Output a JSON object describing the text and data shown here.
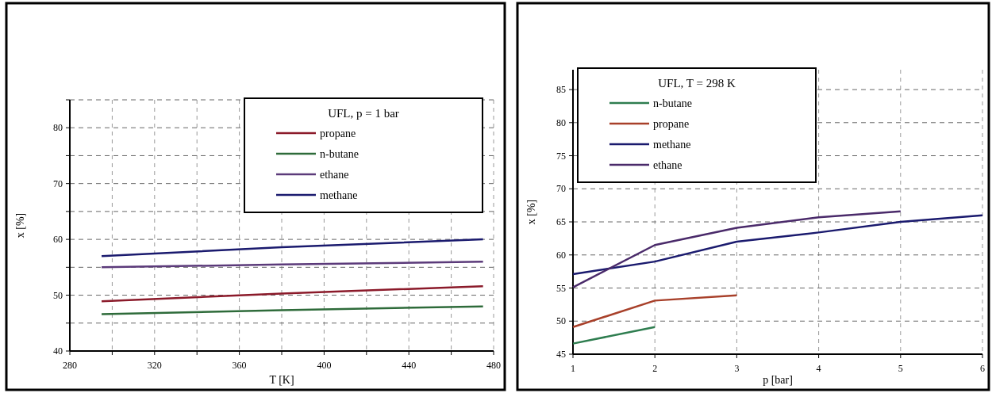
{
  "chart_data": [
    {
      "type": "line",
      "xlabel": "T [K]",
      "ylabel": "x [%]",
      "legend_title": "UFL, p = 1 bar",
      "legend": "top right",
      "grid": true,
      "line_style": "solid",
      "xlim": [
        280,
        480
      ],
      "xticks": [
        280,
        {
          "value": 300,
          "label": null
        },
        320,
        {
          "value": 340,
          "label": null
        },
        360,
        {
          "value": 380,
          "label": null
        },
        400,
        {
          "value": 420,
          "label": null
        },
        440,
        {
          "value": 460,
          "label": null
        },
        480
      ],
      "ylim": [
        40,
        85
      ],
      "yticks": [
        40,
        {
          "value": 45,
          "label": null
        },
        50,
        {
          "value": 55,
          "label": null
        },
        60,
        {
          "value": 65,
          "label": null
        },
        70,
        {
          "value": 75,
          "label": null
        },
        80,
        {
          "value": 85,
          "label": null
        }
      ],
      "series": [
        {
          "name": "propane",
          "color": "#8b1a2a",
          "x": [
            295,
            380,
            475
          ],
          "values": [
            48.9,
            50.3,
            51.6
          ]
        },
        {
          "name": "n-butane",
          "color": "#2e6b3a",
          "x": [
            295,
            380,
            475
          ],
          "values": [
            46.6,
            47.3,
            48
          ]
        },
        {
          "name": "ethane",
          "color": "#5b3a7a",
          "x": [
            295,
            380,
            475
          ],
          "values": [
            55,
            55.5,
            56
          ]
        },
        {
          "name": "methane",
          "color": "#1a1a6e",
          "x": [
            295,
            380,
            475
          ],
          "values": [
            57,
            58.6,
            60
          ]
        }
      ]
    },
    {
      "type": "line",
      "xlabel": "p [bar]",
      "ylabel": "x [%]",
      "legend_title": "UFL, T = 298 K",
      "legend": "top left",
      "grid": true,
      "line_style": "solid",
      "xlim": [
        1,
        6
      ],
      "xticks": [
        1,
        2,
        3,
        4,
        5,
        6
      ],
      "ylim": [
        45,
        88
      ],
      "yticks": [
        45,
        50,
        55,
        60,
        65,
        70,
        75,
        80,
        85
      ],
      "series": [
        {
          "name": "n-butane",
          "color": "#2e7d4f",
          "x": [
            1,
            2
          ],
          "values": [
            46.6,
            49.1
          ]
        },
        {
          "name": "propane",
          "color": "#a8402a",
          "x": [
            1,
            2,
            3
          ],
          "values": [
            49.1,
            53.1,
            53.9
          ]
        },
        {
          "name": "methane",
          "color": "#1a1a6e",
          "x": [
            1,
            2,
            3,
            4,
            5,
            6
          ],
          "values": [
            57.1,
            59,
            62,
            63.4,
            65,
            66
          ]
        },
        {
          "name": "ethane",
          "color": "#4a2a6a",
          "x": [
            1,
            2,
            3,
            4,
            5
          ],
          "values": [
            55.1,
            61.5,
            64.1,
            65.7,
            66.6
          ]
        }
      ]
    }
  ]
}
